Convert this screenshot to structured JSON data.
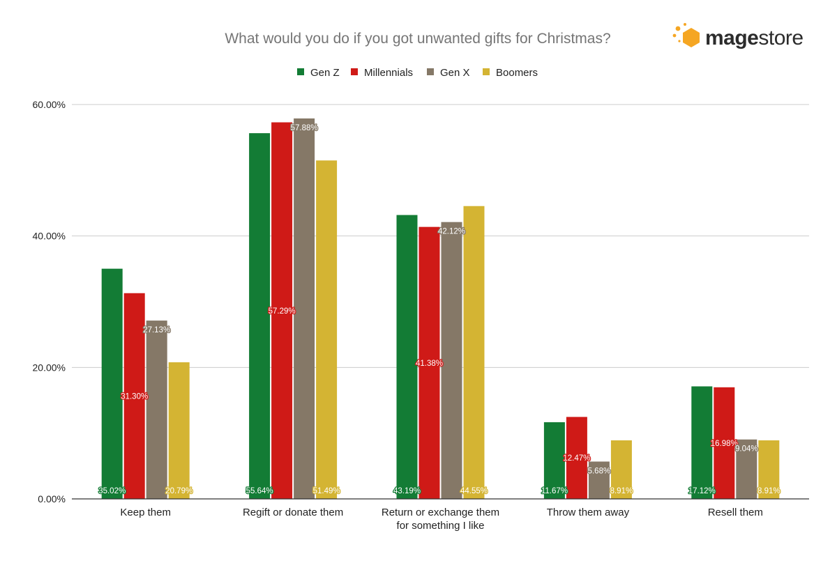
{
  "brand": {
    "logo_prefix": "mage",
    "logo_suffix": "store",
    "accent": "#f5a623"
  },
  "chart_data": {
    "type": "bar",
    "title": "What would you do if you got unwanted gifts for Christmas?",
    "categories": [
      [
        "Keep them"
      ],
      [
        "Regift or donate them"
      ],
      [
        "Return or exchange them",
        "for something I like"
      ],
      [
        "Throw them away"
      ],
      [
        "Resell them"
      ]
    ],
    "series": [
      {
        "name": "Gen Z",
        "color": "#137c35",
        "values": [
          35.02,
          55.64,
          43.19,
          11.67,
          17.12
        ],
        "labels": [
          "35.02%",
          "55.64%",
          "43.19%",
          "11.67%",
          "17.12%"
        ],
        "label_pos": "bottom"
      },
      {
        "name": "Millennials",
        "color": "#cf1a17",
        "values": [
          31.3,
          57.29,
          41.38,
          12.47,
          16.98
        ],
        "labels": [
          "31.30%",
          "57.29%",
          "41.38%",
          "12.47%",
          "16.98%"
        ],
        "label_pos": "middle"
      },
      {
        "name": "Gen X",
        "color": "#857867",
        "values": [
          27.13,
          57.88,
          42.12,
          5.68,
          9.04
        ],
        "labels": [
          "27.13%",
          "57.88%",
          "42.12%",
          "5.68%",
          "9.04%"
        ],
        "label_pos": "top"
      },
      {
        "name": "Boomers",
        "color": "#d4b433",
        "values": [
          20.79,
          51.49,
          44.55,
          8.91,
          8.91
        ],
        "labels": [
          "20.79%",
          "51.49%",
          "44.55%",
          "8.91%",
          "8.91%"
        ],
        "label_pos": "bottom"
      }
    ],
    "yticks": [
      "0.00%",
      "20.00%",
      "40.00%",
      "60.00%"
    ],
    "ylim": [
      0,
      60
    ],
    "xlabel": "",
    "ylabel": "",
    "legend": "top-center",
    "grid": true
  }
}
